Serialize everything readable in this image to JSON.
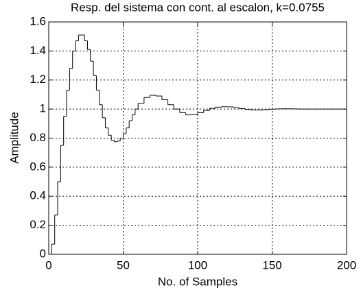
{
  "chart_data": {
    "type": "stairs",
    "title": "Resp. del sistema con cont. al escalon, k=0.0755",
    "x_label": "No. of Samples",
    "y_label": "Amplitude",
    "x": [
      0,
      2,
      4,
      6,
      8,
      10,
      12,
      14,
      16,
      18,
      20,
      22,
      24,
      26,
      28,
      30,
      32,
      34,
      36,
      38,
      40,
      42,
      44,
      46,
      48,
      50,
      52,
      54,
      56,
      58,
      60,
      64,
      68,
      72,
      76,
      80,
      84,
      88,
      92,
      96,
      100,
      104,
      108,
      112,
      116,
      120,
      124,
      128,
      132,
      136,
      140,
      144,
      148,
      152,
      156,
      160,
      164,
      168,
      172,
      176,
      200
    ],
    "values": [
      0,
      0.07,
      0.27,
      0.5,
      0.75,
      0.95,
      1.13,
      1.28,
      1.4,
      1.47,
      1.51,
      1.51,
      1.47,
      1.41,
      1.33,
      1.23,
      1.13,
      1.03,
      0.94,
      0.87,
      0.82,
      0.785,
      0.775,
      0.78,
      0.8,
      0.83,
      0.87,
      0.92,
      0.96,
      1.0,
      1.04,
      1.08,
      1.095,
      1.09,
      1.065,
      1.03,
      1.0,
      0.975,
      0.96,
      0.962,
      0.975,
      0.99,
      1.005,
      1.013,
      1.016,
      1.015,
      1.01,
      1.003,
      0.997,
      0.994,
      0.994,
      0.996,
      0.999,
      1.001,
      1.002,
      1.002,
      1.001,
      1.0,
      1.0,
      1.0,
      1.0
    ],
    "color": "#000000",
    "xlim": [
      0,
      200
    ],
    "xticks": [
      0,
      50,
      100,
      150,
      200
    ],
    "ylim": [
      0,
      1.6
    ],
    "yticks": [
      0,
      0.2,
      0.4,
      0.6,
      0.8,
      1,
      1.2,
      1.4,
      1.6
    ],
    "grid": true
  }
}
